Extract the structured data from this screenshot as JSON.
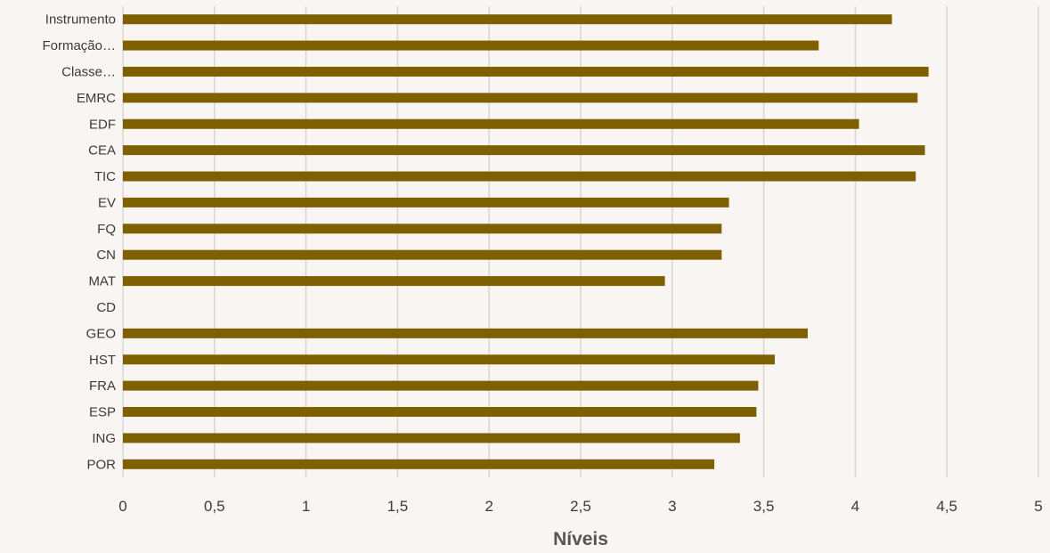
{
  "chart_data": {
    "type": "bar",
    "orientation": "horizontal",
    "title": "",
    "xlabel": "Níveis",
    "ylabel": "",
    "xlim": [
      0,
      5
    ],
    "x_ticks": [
      0,
      0.5,
      1,
      1.5,
      2,
      2.5,
      3,
      3.5,
      4,
      4.5,
      5
    ],
    "x_tick_labels": [
      "0",
      "0,5",
      "1",
      "1,5",
      "2",
      "2,5",
      "3",
      "3,5",
      "4",
      "4,5",
      "5"
    ],
    "grid": "vertical",
    "legend": "none",
    "bar_color": "#7f6000",
    "categories": [
      "Instrumento",
      "Formação…",
      "Classe…",
      "EMRC",
      "EDF",
      "CEA",
      "TIC",
      "EV",
      "FQ",
      "CN",
      "MAT",
      "CD",
      "GEO",
      "HST",
      "FRA",
      "ESP",
      "ING",
      "POR"
    ],
    "values": [
      4.2,
      3.8,
      4.4,
      4.34,
      4.02,
      4.38,
      4.33,
      3.31,
      3.27,
      3.27,
      2.96,
      null,
      3.74,
      3.56,
      3.47,
      3.46,
      3.37,
      3.23
    ]
  }
}
